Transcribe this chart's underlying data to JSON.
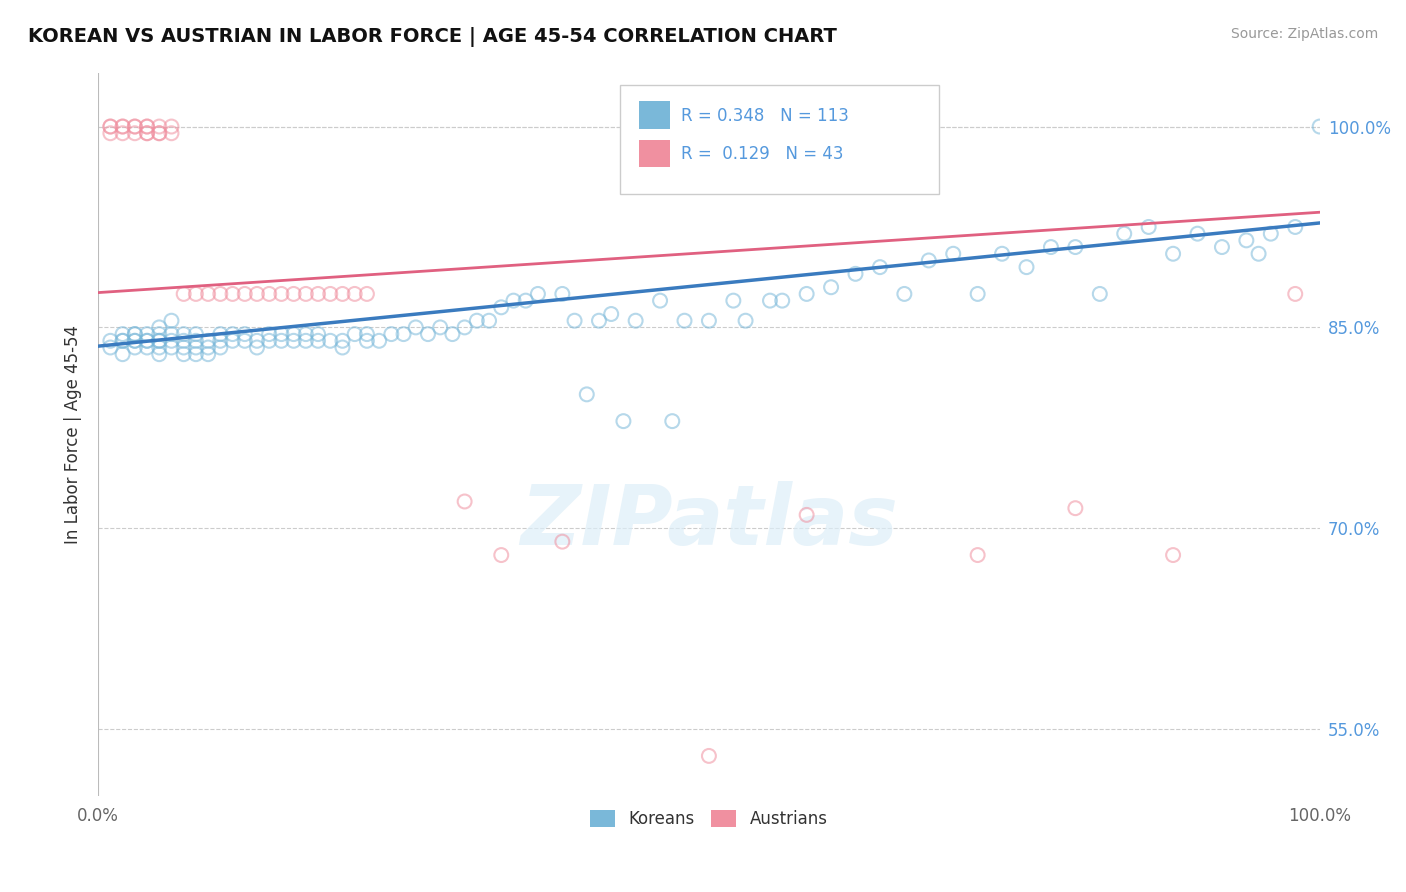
{
  "title": "KOREAN VS AUSTRIAN IN LABOR FORCE | AGE 45-54 CORRELATION CHART",
  "ylabel": "In Labor Force | Age 45-54",
  "source_text": "Source: ZipAtlas.com",
  "watermark": "ZIPatlas",
  "x_min": 0.0,
  "x_max": 1.0,
  "y_min": 0.5,
  "y_max": 1.04,
  "y_ticks": [
    0.55,
    0.7,
    0.85,
    1.0
  ],
  "y_tick_labels": [
    "55.0%",
    "70.0%",
    "85.0%",
    "100.0%"
  ],
  "blue_R": 0.348,
  "blue_N": 113,
  "pink_R": 0.129,
  "pink_N": 43,
  "blue_color": "#7ab8d9",
  "pink_color": "#f090a0",
  "blue_line_color": "#3a7bbf",
  "pink_line_color": "#e06080",
  "legend_blue_label": "Koreans",
  "legend_pink_label": "Austrians",
  "blue_trend_y_start": 0.836,
  "blue_trend_y_end": 0.928,
  "pink_trend_y_start": 0.876,
  "pink_trend_y_end": 0.936,
  "grid_color": "#cccccc",
  "background_color": "#ffffff",
  "dot_size": 100,
  "dot_alpha": 0.55,
  "dot_linewidth": 1.5,
  "blue_scatter_x": [
    0.01,
    0.01,
    0.02,
    0.02,
    0.02,
    0.02,
    0.03,
    0.03,
    0.03,
    0.03,
    0.03,
    0.04,
    0.04,
    0.04,
    0.04,
    0.05,
    0.05,
    0.05,
    0.05,
    0.05,
    0.05,
    0.06,
    0.06,
    0.06,
    0.06,
    0.07,
    0.07,
    0.07,
    0.07,
    0.08,
    0.08,
    0.08,
    0.08,
    0.09,
    0.09,
    0.09,
    0.1,
    0.1,
    0.1,
    0.11,
    0.11,
    0.12,
    0.12,
    0.13,
    0.13,
    0.14,
    0.14,
    0.15,
    0.15,
    0.16,
    0.16,
    0.17,
    0.17,
    0.18,
    0.18,
    0.19,
    0.2,
    0.2,
    0.21,
    0.22,
    0.22,
    0.23,
    0.24,
    0.25,
    0.26,
    0.27,
    0.28,
    0.29,
    0.3,
    0.31,
    0.32,
    0.33,
    0.34,
    0.35,
    0.36,
    0.38,
    0.39,
    0.4,
    0.41,
    0.42,
    0.43,
    0.44,
    0.46,
    0.47,
    0.48,
    0.5,
    0.52,
    0.53,
    0.55,
    0.56,
    0.58,
    0.6,
    0.62,
    0.64,
    0.66,
    0.68,
    0.7,
    0.72,
    0.74,
    0.76,
    0.78,
    0.8,
    0.82,
    0.84,
    0.86,
    0.88,
    0.9,
    0.92,
    0.94,
    0.95,
    0.96,
    0.98,
    1.0
  ],
  "blue_scatter_y": [
    0.835,
    0.84,
    0.83,
    0.84,
    0.84,
    0.845,
    0.835,
    0.84,
    0.84,
    0.845,
    0.845,
    0.835,
    0.84,
    0.84,
    0.845,
    0.83,
    0.835,
    0.84,
    0.84,
    0.845,
    0.85,
    0.835,
    0.84,
    0.845,
    0.855,
    0.83,
    0.835,
    0.84,
    0.845,
    0.83,
    0.835,
    0.84,
    0.845,
    0.83,
    0.835,
    0.84,
    0.835,
    0.84,
    0.845,
    0.84,
    0.845,
    0.84,
    0.845,
    0.835,
    0.84,
    0.84,
    0.845,
    0.84,
    0.845,
    0.84,
    0.845,
    0.84,
    0.845,
    0.84,
    0.845,
    0.84,
    0.835,
    0.84,
    0.845,
    0.84,
    0.845,
    0.84,
    0.845,
    0.845,
    0.85,
    0.845,
    0.85,
    0.845,
    0.85,
    0.855,
    0.855,
    0.865,
    0.87,
    0.87,
    0.875,
    0.875,
    0.855,
    0.8,
    0.855,
    0.86,
    0.78,
    0.855,
    0.87,
    0.78,
    0.855,
    0.855,
    0.87,
    0.855,
    0.87,
    0.87,
    0.875,
    0.88,
    0.89,
    0.895,
    0.875,
    0.9,
    0.905,
    0.875,
    0.905,
    0.895,
    0.91,
    0.91,
    0.875,
    0.92,
    0.925,
    0.905,
    0.92,
    0.91,
    0.915,
    0.905,
    0.92,
    0.925,
    1.0
  ],
  "pink_scatter_x": [
    0.01,
    0.01,
    0.01,
    0.02,
    0.02,
    0.02,
    0.03,
    0.03,
    0.03,
    0.04,
    0.04,
    0.04,
    0.04,
    0.05,
    0.05,
    0.05,
    0.06,
    0.06,
    0.07,
    0.08,
    0.09,
    0.1,
    0.11,
    0.12,
    0.13,
    0.14,
    0.15,
    0.16,
    0.17,
    0.18,
    0.19,
    0.2,
    0.21,
    0.22,
    0.3,
    0.33,
    0.38,
    0.5,
    0.58,
    0.72,
    0.8,
    0.88,
    0.98
  ],
  "pink_scatter_y": [
    0.995,
    1.0,
    1.0,
    0.995,
    1.0,
    1.0,
    0.995,
    1.0,
    1.0,
    0.995,
    1.0,
    0.995,
    1.0,
    0.995,
    1.0,
    0.995,
    1.0,
    0.995,
    0.875,
    0.875,
    0.875,
    0.875,
    0.875,
    0.875,
    0.875,
    0.875,
    0.875,
    0.875,
    0.875,
    0.875,
    0.875,
    0.875,
    0.875,
    0.875,
    0.72,
    0.68,
    0.69,
    0.53,
    0.71,
    0.68,
    0.715,
    0.68,
    0.875
  ]
}
